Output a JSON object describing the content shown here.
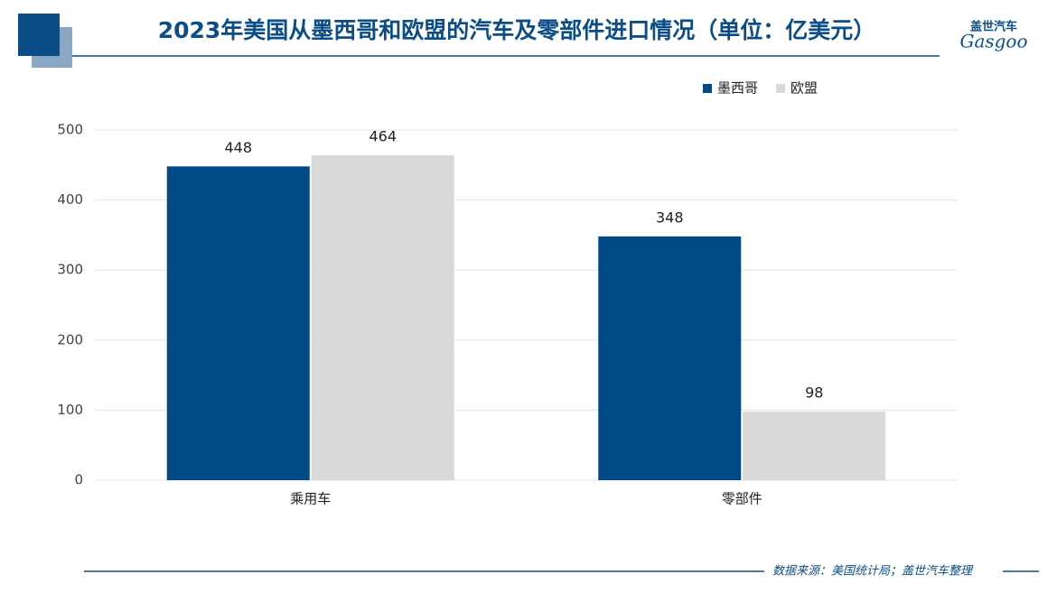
{
  "chart_data": {
    "type": "bar",
    "title": "2023年美国从墨西哥和欧盟的汽车及零部件进口情况（单位：亿美元）",
    "logo": {
      "name": "盖世汽车",
      "brand": "Gasgoo"
    },
    "source": "数据来源：美国统计局；盖世汽车整理",
    "categories": [
      "乘用车",
      "零部件"
    ],
    "series": [
      {
        "name": "墨西哥",
        "color": "#004b87",
        "values": [
          448,
          348
        ]
      },
      {
        "name": "欧盟",
        "color": "#d9d9d9",
        "values": [
          464,
          98
        ]
      }
    ],
    "ylim": [
      0,
      500
    ],
    "yticks": [
      0,
      100,
      200,
      300,
      400,
      500
    ],
    "grid": true,
    "legend": "top-right"
  }
}
